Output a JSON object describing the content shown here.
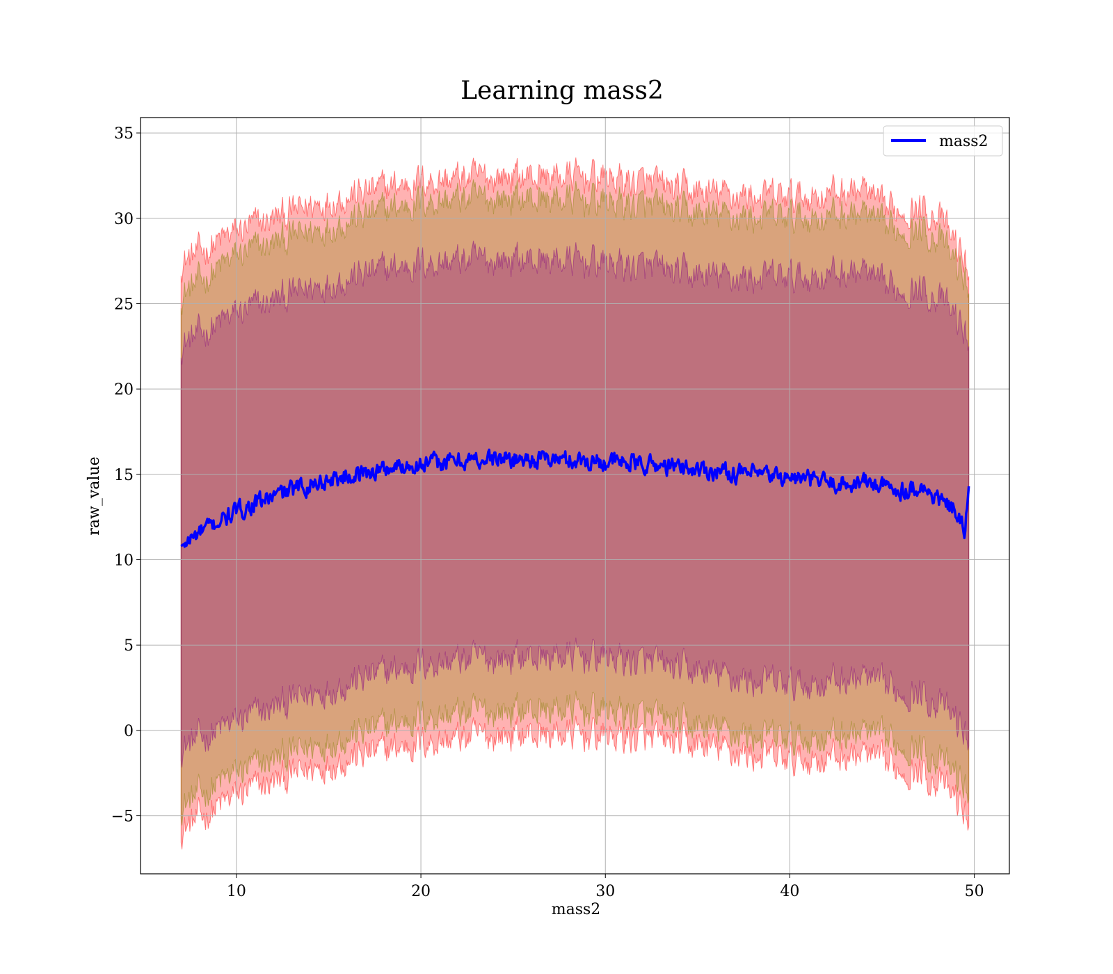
{
  "chart_data": {
    "type": "line",
    "title": "Learning mass2",
    "xlabel": "mass2",
    "ylabel": "raw_value",
    "xlim": [
      4.8,
      51.9
    ],
    "ylim": [
      -8.4,
      35.9
    ],
    "x_ticks": [
      10,
      20,
      30,
      40,
      50
    ],
    "x_tick_labels": [
      "10",
      "20",
      "30",
      "40",
      "50"
    ],
    "y_ticks": [
      -5,
      0,
      5,
      10,
      15,
      20,
      25,
      30,
      35
    ],
    "y_tick_labels": [
      "−5",
      "0",
      "5",
      "10",
      "15",
      "20",
      "25",
      "30",
      "35"
    ],
    "grid": true,
    "legend": {
      "position": "top-right",
      "entries": [
        "mass2"
      ]
    },
    "x_range": [
      7.0,
      49.7
    ],
    "series": [
      {
        "name": "mass2",
        "kind": "line",
        "color": "#0000ff",
        "x": [
          7,
          8,
          9,
          10,
          11,
          12,
          13,
          14,
          15,
          16,
          17,
          18,
          19,
          20,
          21,
          22,
          23,
          24,
          25,
          26,
          27,
          28,
          29,
          30,
          31,
          32,
          33,
          34,
          35,
          36,
          37,
          38,
          39,
          40,
          41,
          42,
          43,
          44,
          45,
          46,
          47,
          48,
          49,
          49.5,
          49.7
        ],
        "y": [
          10.8,
          11.6,
          12.2,
          12.8,
          13.3,
          13.7,
          14.1,
          14.4,
          14.7,
          14.9,
          15.1,
          15.3,
          15.5,
          15.6,
          15.7,
          15.8,
          15.85,
          15.9,
          15.9,
          15.9,
          15.9,
          15.85,
          15.8,
          15.75,
          15.7,
          15.6,
          15.5,
          15.4,
          15.3,
          15.2,
          15.1,
          15.0,
          14.9,
          14.8,
          14.7,
          14.55,
          14.4,
          14.6,
          14.3,
          14.1,
          14.3,
          13.6,
          12.8,
          11.5,
          14.3
        ]
      }
    ],
    "bands": [
      {
        "color": "#ff0000",
        "opacity": 0.3,
        "x": [
          7,
          10,
          15,
          20,
          25,
          30,
          35,
          40,
          44,
          45,
          47,
          48,
          49,
          49.7
        ],
        "lower": [
          -5.8,
          -3.8,
          -1.9,
          -0.7,
          -0.2,
          -0.3,
          -0.9,
          -1.8,
          -1.4,
          -2.0,
          -2.4,
          -3.0,
          -4.0,
          -5.2
        ],
        "upper": [
          27.4,
          29.2,
          31.1,
          32.2,
          32.5,
          32.4,
          31.5,
          31.2,
          31.7,
          30.5,
          30.6,
          30.2,
          28.5,
          27.0
        ]
      },
      {
        "color": "#808000",
        "opacity": 0.3,
        "x": [
          7,
          10,
          15,
          20,
          25,
          30,
          35,
          40,
          44,
          45,
          47,
          48,
          49,
          49.7
        ],
        "lower": [
          -4.4,
          -2.5,
          -0.6,
          0.8,
          1.2,
          1.2,
          0.2,
          -0.6,
          -0.1,
          -0.6,
          -1.0,
          -1.7,
          -2.6,
          -3.6
        ],
        "upper": [
          25.5,
          27.8,
          29.6,
          31.0,
          31.2,
          31.0,
          30.2,
          30.0,
          30.3,
          29.4,
          29.4,
          28.9,
          27.4,
          26.0
        ]
      },
      {
        "color": "#800080",
        "opacity": 0.3,
        "x": [
          7,
          10,
          15,
          20,
          25,
          30,
          35,
          40,
          44,
          45,
          47,
          48,
          49,
          49.7
        ],
        "lower": [
          -1.0,
          0.5,
          2.5,
          3.9,
          4.3,
          4.3,
          3.4,
          2.6,
          3.1,
          2.5,
          2.2,
          1.6,
          0.6,
          -0.5
        ],
        "upper": [
          22.6,
          24.4,
          26.3,
          27.4,
          27.6,
          27.4,
          26.6,
          26.5,
          26.9,
          25.9,
          25.9,
          25.4,
          24.2,
          22.9
        ]
      }
    ]
  }
}
